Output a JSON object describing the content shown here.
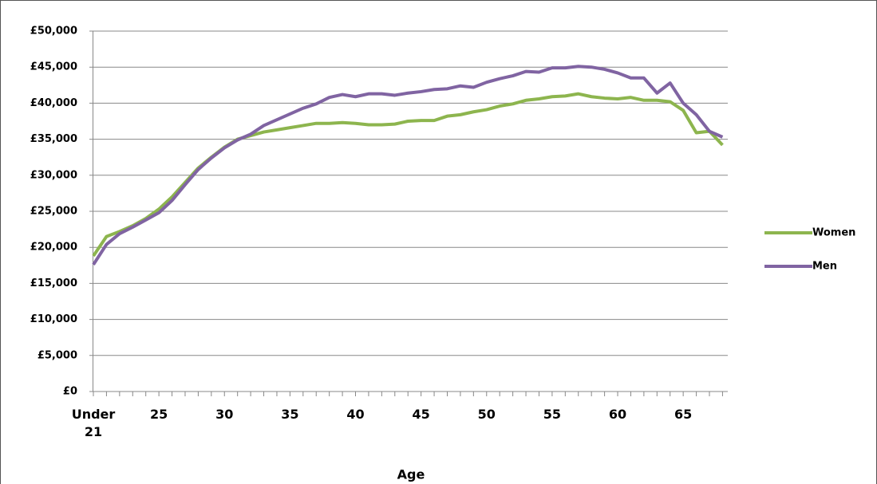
{
  "chart_data": {
    "type": "line",
    "x_label": "Age",
    "categories": [
      "Under 21",
      null,
      null,
      null,
      null,
      "25",
      null,
      null,
      null,
      null,
      "30",
      null,
      null,
      null,
      null,
      "35",
      null,
      null,
      null,
      null,
      "40",
      null,
      null,
      null,
      null,
      "45",
      null,
      null,
      null,
      null,
      "50",
      null,
      null,
      null,
      null,
      "55",
      null,
      null,
      null,
      null,
      "60",
      null,
      null,
      null,
      null,
      "65",
      null,
      null,
      null
    ],
    "series": [
      {
        "name": "Women",
        "color": "#8db54e",
        "values": [
          18800,
          21500,
          22200,
          23000,
          24000,
          25300,
          27000,
          29000,
          31000,
          32500,
          33900,
          35000,
          35500,
          36000,
          36300,
          36600,
          36900,
          37200,
          37200,
          37300,
          37200,
          37000,
          37000,
          37100,
          37500,
          37600,
          37600,
          38200,
          38400,
          38800,
          39100,
          39600,
          39900,
          40400,
          40600,
          40900,
          41000,
          41300,
          40900,
          40700,
          40600,
          40800,
          40400,
          40400,
          40200,
          39000,
          35900,
          36100,
          34200
        ]
      },
      {
        "name": "Men",
        "color": "#8064a2",
        "values": [
          17600,
          20400,
          21900,
          22800,
          23800,
          24800,
          26500,
          28700,
          30800,
          32400,
          33800,
          34900,
          35700,
          36900,
          37700,
          38500,
          39300,
          39900,
          40800,
          41200,
          40900,
          41300,
          41300,
          41100,
          41400,
          41600,
          41900,
          42000,
          42400,
          42200,
          42900,
          43400,
          43800,
          44400,
          44300,
          44900,
          44900,
          45100,
          45000,
          44700,
          44200,
          43500,
          43500,
          41400,
          42800,
          40000,
          38400,
          36100,
          35300
        ]
      }
    ],
    "ylim": [
      0,
      50000
    ],
    "yticks": [
      {
        "value": 0,
        "label": "£0"
      },
      {
        "value": 5000,
        "label": "£5,000"
      },
      {
        "value": 10000,
        "label": "£10,000"
      },
      {
        "value": 15000,
        "label": "£15,000"
      },
      {
        "value": 20000,
        "label": "£20,000"
      },
      {
        "value": 25000,
        "label": "£25,000"
      },
      {
        "value": 30000,
        "label": "£30,000"
      },
      {
        "value": 35000,
        "label": "£35,000"
      },
      {
        "value": 40000,
        "label": "£40,000"
      },
      {
        "value": 45000,
        "label": "£45,000"
      },
      {
        "value": 50000,
        "label": "£50,000"
      }
    ],
    "grid": true,
    "legend": "right"
  }
}
